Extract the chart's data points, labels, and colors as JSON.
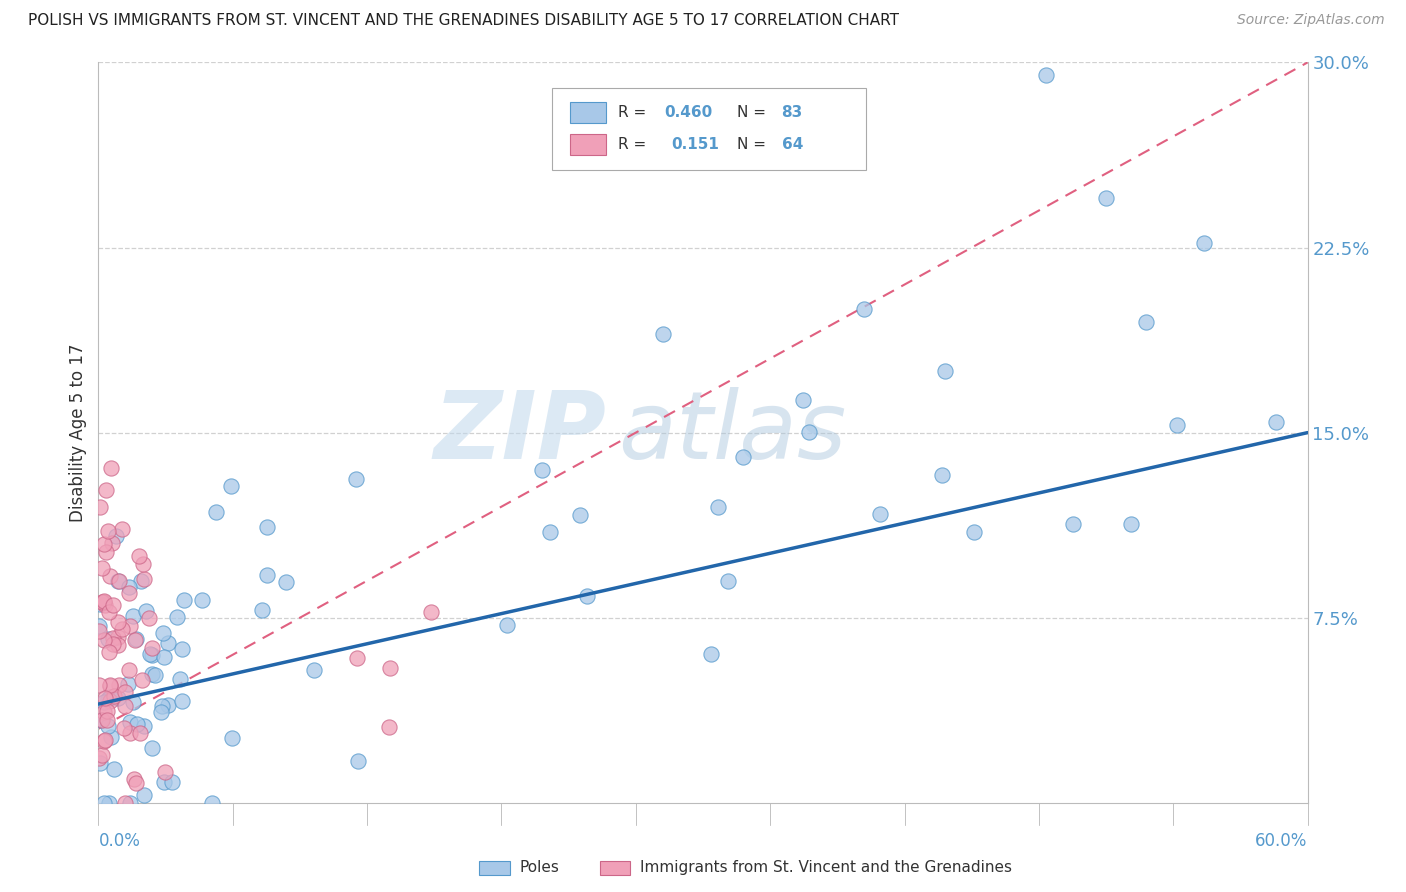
{
  "title": "POLISH VS IMMIGRANTS FROM ST. VINCENT AND THE GRENADINES DISABILITY AGE 5 TO 17 CORRELATION CHART",
  "source": "Source: ZipAtlas.com",
  "ylabel": "Disability Age 5 to 17",
  "xlim": [
    0.0,
    0.6
  ],
  "ylim": [
    0.0,
    0.3
  ],
  "color_blue": "#A8C8E8",
  "color_blue_edge": "#5599CC",
  "color_pink": "#F0A0B8",
  "color_pink_edge": "#CC6688",
  "color_line_blue": "#2266AA",
  "color_line_pink": "#E06080",
  "color_watermark_zip": "#B8D4E8",
  "color_watermark_atlas": "#99BBDD",
  "watermark_zip": "ZIP",
  "watermark_atlas": "atlas",
  "blue_line_x0": 0.0,
  "blue_line_y0": 0.04,
  "blue_line_x1": 0.6,
  "blue_line_y1": 0.15,
  "pink_line_x0": 0.0,
  "pink_line_y0": 0.03,
  "pink_line_x1": 0.6,
  "pink_line_y1": 0.3,
  "ytick_vals": [
    0.075,
    0.15,
    0.225,
    0.3
  ],
  "ytick_labels": [
    "7.5%",
    "15.0%",
    "22.5%",
    "30.0%"
  ],
  "legend_r1_black": "R = ",
  "legend_r1_blue": "0.460",
  "legend_n1_black": "  N = ",
  "legend_n1_blue": "83",
  "legend_r2_black": "R =  ",
  "legend_r2_blue": "0.151",
  "legend_n2_black": "  N = ",
  "legend_n2_blue": "64"
}
